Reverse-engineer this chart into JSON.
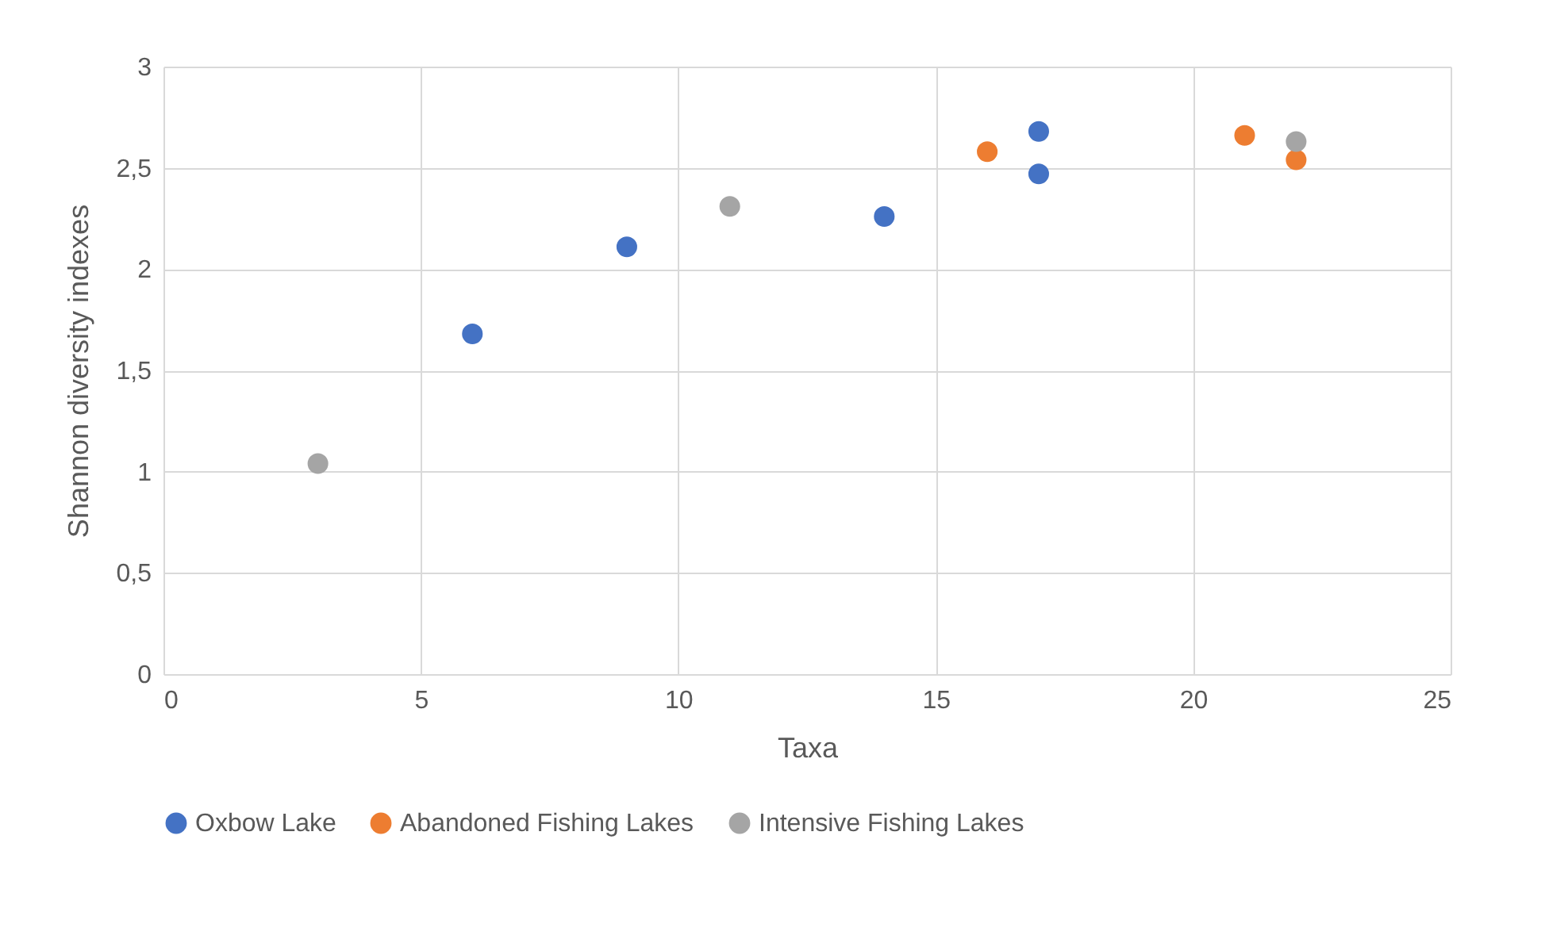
{
  "chart_data": {
    "type": "scatter",
    "xlabel": "Taxa",
    "ylabel": "Shannon diversity indexes",
    "xlim": [
      0,
      25
    ],
    "xticks": [
      0,
      5,
      10,
      15,
      20,
      25
    ],
    "ylim": [
      0,
      3
    ],
    "yticks": [
      0,
      {
        "value": 0.5,
        "label": "0,5"
      },
      1,
      {
        "value": 1.5,
        "label": "1,5"
      },
      2,
      {
        "value": 2.5,
        "label": "2,5"
      },
      3
    ],
    "grid": true,
    "legend": "bottom",
    "marker": "circle",
    "series": [
      {
        "name": "Oxbow Lake",
        "color": "#4472c4",
        "x": [
          6,
          9,
          14,
          17,
          17
        ],
        "values": [
          1.68,
          2.11,
          2.26,
          2.68,
          2.47
        ]
      },
      {
        "name": "Abandoned Fishing Lakes",
        "color": "#ed7d31",
        "x": [
          16,
          21,
          22
        ],
        "values": [
          2.58,
          2.66,
          2.54
        ]
      },
      {
        "name": "Intensive Fishing Lakes",
        "color": "#a5a5a5",
        "x": [
          3,
          11,
          22
        ],
        "values": [
          1.04,
          2.31,
          2.63
        ]
      }
    ]
  }
}
